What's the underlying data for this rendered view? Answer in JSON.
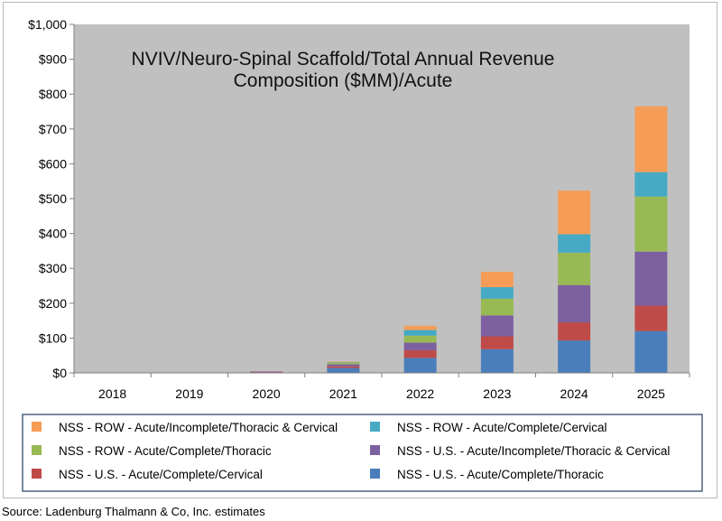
{
  "chart_data": {
    "type": "bar",
    "stacked": true,
    "title_lines": [
      "NVIV/Neuro-Spinal Scaffold/Total Annual Revenue",
      "Composition ($MM)/Acute"
    ],
    "xlabel": "",
    "ylabel": "",
    "ylim": [
      0,
      1000
    ],
    "yticks": [
      0,
      100,
      200,
      300,
      400,
      500,
      600,
      700,
      800,
      900,
      1000
    ],
    "ytick_labels": [
      "$0",
      "$100",
      "$200",
      "$300",
      "$400",
      "$500",
      "$600",
      "$700",
      "$800",
      "$900",
      "$1,000"
    ],
    "grid": false,
    "categories": [
      "2018",
      "2019",
      "2020",
      "2021",
      "2022",
      "2023",
      "2024",
      "2025"
    ],
    "series": [
      {
        "name": "NSS - U.S. - Acute/Complete/Thoracic",
        "color": "#4a7ebb",
        "values": [
          0,
          0,
          2,
          14,
          43,
          68,
          93,
          120
        ]
      },
      {
        "name": "NSS - U.S. - Acute/Complete/Cervical",
        "color": "#be4b48",
        "values": [
          0,
          0,
          1,
          5,
          22,
          37,
          52,
          73
        ]
      },
      {
        "name": "NSS - U.S. - Acute/Incomplete/Thoracic & Cervical",
        "color": "#7d60a0",
        "values": [
          0,
          0,
          1,
          6,
          22,
          60,
          107,
          155
        ]
      },
      {
        "name": "NSS - ROW - Acute/Complete/Thoracic",
        "color": "#98b954",
        "values": [
          0,
          0,
          0,
          5,
          20,
          48,
          93,
          158
        ]
      },
      {
        "name": "NSS - ROW - Acute/Complete/Cervical",
        "color": "#46aac5",
        "values": [
          0,
          0,
          0,
          1,
          16,
          33,
          53,
          70
        ]
      },
      {
        "name": "NSS - ROW - Acute/Incomplete/Thoracic & Cervical",
        "color": "#f59d56",
        "values": [
          0,
          0,
          0,
          1,
          12,
          44,
          125,
          189
        ]
      }
    ],
    "legend_order": [
      5,
      4,
      3,
      2,
      1,
      0
    ],
    "legend_position": "bottom",
    "source": "Source: Ladenburg Thalmann & Co, Inc. estimates"
  },
  "colors": {
    "plot_background": "#c0c0c0",
    "axis": "#808080",
    "legend_border": "#1f3c5a"
  }
}
